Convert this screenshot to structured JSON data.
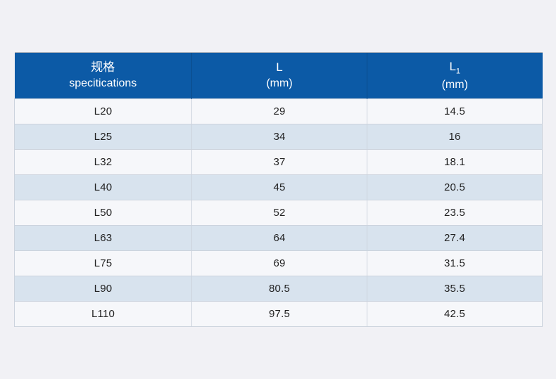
{
  "colors": {
    "header_bg": "#0c5aa6",
    "row_light": "#f6f7fa",
    "row_alt": "#d8e3ee",
    "border": "#ccd3dd",
    "header_text": "#ffffff",
    "body_text": "#222222",
    "page_bg": "#f1f1f5"
  },
  "table": {
    "header": {
      "spec_line1": "规格",
      "spec_line2": "specitications",
      "l_line1": "L",
      "l_line2": "(mm)",
      "l1_base": "L",
      "l1_sub": "1",
      "l1_line2": "(mm)"
    },
    "rows": [
      {
        "spec": "L20",
        "l": "29",
        "l1": "14.5"
      },
      {
        "spec": "L25",
        "l": "34",
        "l1": "16"
      },
      {
        "spec": "L32",
        "l": "37",
        "l1": "18.1"
      },
      {
        "spec": "L40",
        "l": "45",
        "l1": "20.5"
      },
      {
        "spec": "L50",
        "l": "52",
        "l1": "23.5"
      },
      {
        "spec": "L63",
        "l": "64",
        "l1": "27.4"
      },
      {
        "spec": "L75",
        "l": "69",
        "l1": "31.5"
      },
      {
        "spec": "L90",
        "l": "80.5",
        "l1": "35.5"
      },
      {
        "spec": "L110",
        "l": "97.5",
        "l1": "42.5"
      }
    ]
  }
}
